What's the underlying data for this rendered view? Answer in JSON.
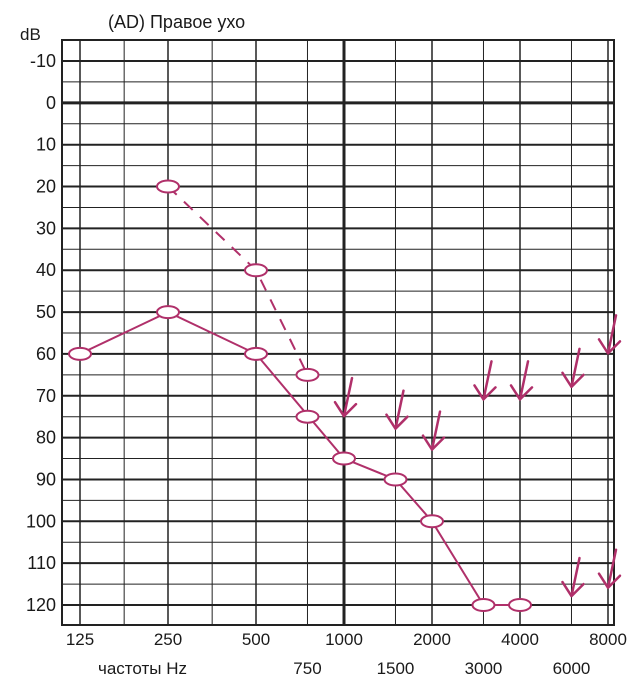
{
  "chart_data": {
    "type": "line",
    "title": "(AD) Правое ухо",
    "ylabel": "dB",
    "xlabel": "частоты Hz",
    "ylim": [
      -10,
      120
    ],
    "y_inverted": true,
    "grid": true,
    "y_ticks": [
      "-10",
      "0",
      "10",
      "20",
      "30",
      "40",
      "50",
      "60",
      "70",
      "80",
      "90",
      "100",
      "110",
      "120"
    ],
    "x_ticks_main": [
      "125",
      "250",
      "500",
      "1000",
      "2000",
      "4000",
      "8000"
    ],
    "x_ticks_mid": [
      "750",
      "1500",
      "3000",
      "6000"
    ],
    "series": [
      {
        "marker": "circle",
        "line": "solid",
        "color": "#b0306a",
        "x": [
          125,
          250,
          500,
          1000,
          1500,
          2000,
          3000,
          4000
        ],
        "y": [
          60,
          50,
          60,
          85,
          90,
          100,
          120,
          120
        ]
      },
      {
        "marker": "circle",
        "line": "dashed",
        "color": "#b0306a",
        "x": [
          250,
          500,
          750
        ],
        "y": [
          20,
          40,
          65
        ]
      }
    ],
    "extra_markers": [
      {
        "x": 750,
        "y": 75,
        "marker": "circle"
      }
    ],
    "no_response_arrows": [
      {
        "x": 1000,
        "y": 72
      },
      {
        "x": 1500,
        "y": 75
      },
      {
        "x": 2000,
        "y": 80
      },
      {
        "x": 3000,
        "y": 68
      },
      {
        "x": 4000,
        "y": 68
      },
      {
        "x": 6000,
        "y": 65
      },
      {
        "x": 8000,
        "y": 57
      },
      {
        "x": 6000,
        "y": 115
      },
      {
        "x": 8000,
        "y": 113
      }
    ]
  }
}
